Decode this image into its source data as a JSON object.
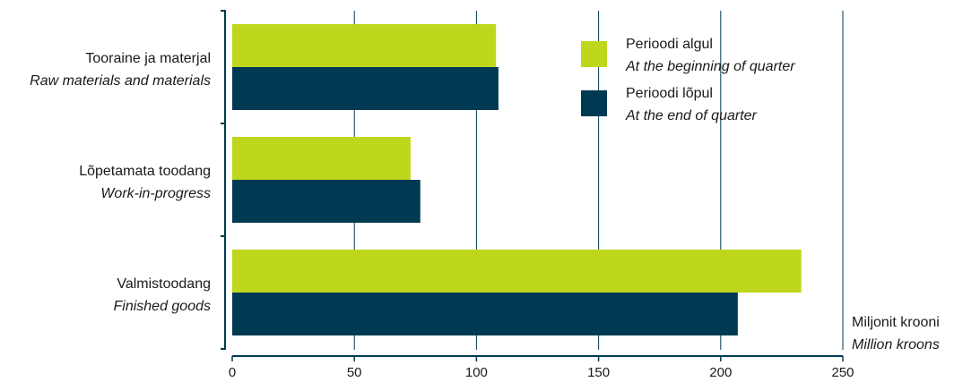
{
  "chart_data": {
    "type": "bar",
    "orientation": "horizontal",
    "categories": [
      {
        "label": "Tooraine ja materjal",
        "label_en": "Raw materials and materials"
      },
      {
        "label": "Lõpetamata toodang",
        "label_en": "Work-in-progress"
      },
      {
        "label": "Valmistoodang",
        "label_en": "Finished goods"
      }
    ],
    "series": [
      {
        "name": "Perioodi algul",
        "name_en": "At the beginning of quarter",
        "color": "#bed71c",
        "values": [
          108,
          73,
          233
        ]
      },
      {
        "name": "Perioodi lõpul",
        "name_en": "At the end of quarter",
        "color": "#003a52",
        "values": [
          109,
          77,
          207
        ]
      }
    ],
    "xlim": [
      0,
      250
    ],
    "xticks": [
      0,
      50,
      100,
      150,
      200,
      250
    ],
    "unit": {
      "label": "Miljonit krooni",
      "label_en": "Million kroons"
    },
    "grid": true,
    "legend_position": "top-right",
    "axis_color": "#003a52"
  }
}
